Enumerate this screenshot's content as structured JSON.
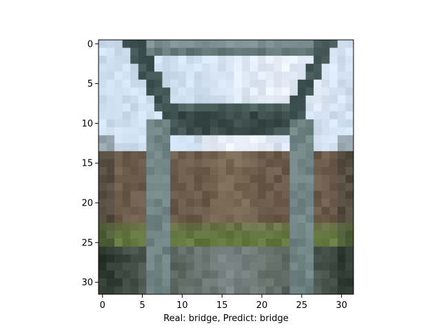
{
  "chart_data": {
    "type": "heatmap",
    "title": "",
    "xlabel": "Real: bridge, Predict: bridge",
    "ylabel": "",
    "xlim": [
      -0.5,
      31.5
    ],
    "ylim": [
      31.5,
      -0.5
    ],
    "x_ticks": [
      0,
      5,
      10,
      15,
      20,
      25,
      30
    ],
    "y_ticks": [
      0,
      5,
      10,
      15,
      20,
      25,
      30
    ],
    "x_tick_labels": [
      "0",
      "5",
      "10",
      "15",
      "20",
      "25",
      "30"
    ],
    "y_tick_labels": [
      "0",
      "5",
      "10",
      "15",
      "20",
      "25",
      "30"
    ],
    "grid": false,
    "colors": {
      "sky": "#cfdff0",
      "sky_bright": "#e8eef8",
      "steel": "#5f7473",
      "steel_dark": "#2f3f3d",
      "truss_light": "#9aaab0",
      "brick": "#7a6a55",
      "brick_dark": "#5a4a3e",
      "grass": "#5e7a3a",
      "road": "#7c8684",
      "shadow": "#263228"
    }
  }
}
